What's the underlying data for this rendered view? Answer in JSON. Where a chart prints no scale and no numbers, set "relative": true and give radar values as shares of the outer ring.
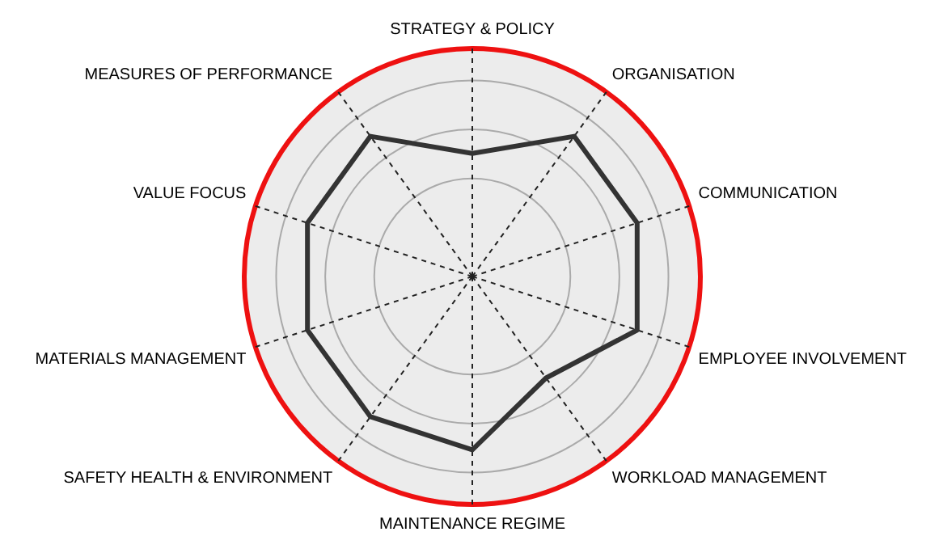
{
  "chart_data": {
    "type": "radar",
    "relative": true,
    "categories": [
      "STRATEGY & POLICY",
      "ORGANISATION",
      "COMMUNICATION",
      "EMPLOYEE INVOLVEMENT",
      "WORKLOAD MANAGEMENT",
      "MAINTENANCE REGIME",
      "SAFETY HEALTH & ENVIRONMENT",
      "MATERIALS MANAGEMENT",
      "VALUE FOCUS",
      "MEASURES OF PERFORMANCE"
    ],
    "series": [
      {
        "color": "#333333",
        "values": [
          0.54,
          0.76,
          0.76,
          0.76,
          0.55,
          0.76,
          0.76,
          0.76,
          0.76,
          0.76
        ]
      }
    ],
    "marker": "none",
    "grid": true,
    "legend": false
  }
}
